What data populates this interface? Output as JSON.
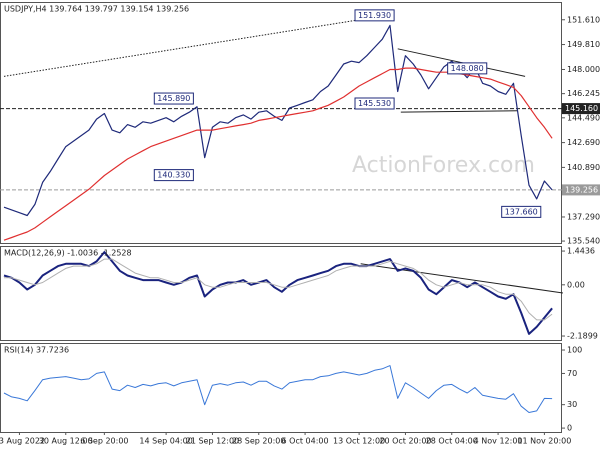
{
  "chart_data": [
    {
      "type": "line",
      "title": "USDJPY,H4 139.764 139.797 139.154 139.256",
      "watermark": "ActionForex.com",
      "ylim": [
        135.4,
        152.9
      ],
      "yticks": [
        {
          "value": 135.54,
          "label": "135.540"
        },
        {
          "value": 137.29,
          "label": "137.290"
        },
        {
          "value": 140.89,
          "label": "140.890"
        },
        {
          "value": 142.69,
          "label": "142.690"
        },
        {
          "value": 144.49,
          "label": "144.490"
        },
        {
          "value": 146.245,
          "label": "146.245"
        },
        {
          "value": 148.0,
          "label": "148.000"
        },
        {
          "value": 149.81,
          "label": "149.810"
        },
        {
          "value": 151.61,
          "label": "151.610"
        }
      ],
      "series": [
        {
          "color": "#1f2a7a",
          "width": 1.2,
          "values": [
            138.0,
            137.8,
            137.6,
            137.4,
            138.2,
            139.8,
            140.6,
            141.5,
            142.4,
            142.8,
            143.2,
            143.6,
            144.4,
            144.8,
            143.6,
            143.4,
            144.0,
            143.8,
            144.2,
            144.1,
            144.3,
            144.5,
            144.2,
            144.6,
            144.9,
            145.3,
            141.6,
            143.8,
            144.2,
            144.1,
            144.5,
            144.7,
            144.4,
            144.9,
            145.0,
            144.6,
            144.3,
            145.2,
            145.4,
            145.6,
            145.8,
            146.4,
            146.8,
            147.6,
            148.4,
            148.6,
            148.5,
            149.0,
            149.6,
            150.2,
            151.2,
            146.4,
            149.0,
            148.4,
            147.6,
            146.6,
            147.4,
            148.2,
            148.6,
            148.0,
            147.4,
            148.2,
            147.0,
            146.8,
            146.4,
            146.2,
            147.0,
            143.2,
            139.6,
            138.6,
            139.9,
            139.256
          ]
        },
        {
          "color": "#e03030",
          "width": 1.2,
          "values": [
            135.6,
            135.8,
            136.0,
            136.2,
            136.5,
            136.9,
            137.3,
            137.7,
            138.1,
            138.5,
            138.9,
            139.3,
            139.8,
            140.3,
            140.7,
            141.1,
            141.5,
            141.8,
            142.1,
            142.4,
            142.6,
            142.8,
            143.0,
            143.2,
            143.4,
            143.6,
            143.6,
            143.6,
            143.7,
            143.8,
            143.9,
            144.0,
            144.1,
            144.3,
            144.4,
            144.5,
            144.6,
            144.7,
            144.8,
            144.9,
            145.0,
            145.2,
            145.4,
            145.7,
            146.0,
            146.4,
            146.8,
            147.1,
            147.4,
            147.7,
            148.0,
            148.0,
            148.1,
            148.1,
            148.0,
            147.9,
            147.8,
            147.8,
            147.8,
            147.7,
            147.6,
            147.5,
            147.4,
            147.3,
            147.1,
            146.9,
            146.7,
            146.1,
            145.3,
            144.5,
            143.8,
            143.0
          ]
        }
      ],
      "levels": [
        {
          "value": 145.16,
          "label": "145.160",
          "color": "#222222"
        },
        {
          "value": 139.256,
          "label": "139.256",
          "color": "#9a9a9a"
        }
      ],
      "annotations": [
        {
          "value": 151.93,
          "label": "151.930",
          "index": 48
        },
        {
          "value": 145.89,
          "label": "145.890",
          "index": 22
        },
        {
          "value": 140.33,
          "label": "140.330",
          "index": 22
        },
        {
          "value": 145.53,
          "label": "145.530",
          "index": 48
        },
        {
          "value": 148.08,
          "label": "148.080",
          "index": 60
        },
        {
          "value": 137.66,
          "label": "137.660",
          "index": 67
        }
      ],
      "trendlines": [
        {
          "x": [
            0,
            50.4
          ],
          "y": [
            147.5,
            152.0
          ],
          "style": "dotted"
        },
        {
          "x": [
            51,
            67.5
          ],
          "y": [
            149.5,
            147.5
          ],
          "style": "solid"
        },
        {
          "x": [
            51.4,
            66.5
          ],
          "y": [
            144.9,
            145.0
          ],
          "style": "solid"
        }
      ]
    },
    {
      "type": "line",
      "title": "MACD(12,26,9) -1.0036 -1.2528",
      "ylim": [
        -2.36,
        1.66
      ],
      "yticks": [
        -2.1899,
        {
          "value": 0,
          "label": "0.00"
        },
        1.4436
      ],
      "series": [
        {
          "color": "#1a237e",
          "width": 2,
          "values": [
            0.4,
            0.3,
            0.1,
            -0.2,
            0.0,
            0.4,
            0.6,
            0.8,
            0.9,
            0.9,
            0.9,
            0.8,
            1.0,
            1.4,
            1.0,
            0.6,
            0.4,
            0.3,
            0.2,
            0.2,
            0.2,
            0.1,
            0.0,
            0.1,
            0.3,
            0.4,
            -0.5,
            -0.2,
            0.0,
            0.1,
            0.1,
            0.2,
            0.0,
            0.1,
            0.2,
            -0.1,
            -0.3,
            0.0,
            0.2,
            0.3,
            0.4,
            0.5,
            0.6,
            0.8,
            0.9,
            0.9,
            0.8,
            0.8,
            0.9,
            1.0,
            1.1,
            0.6,
            0.7,
            0.6,
            0.3,
            -0.2,
            -0.4,
            -0.1,
            0.2,
            0.1,
            -0.1,
            0.1,
            -0.1,
            -0.3,
            -0.5,
            -0.6,
            -0.4,
            -1.2,
            -2.1,
            -1.8,
            -1.4,
            -1.0036
          ]
        },
        {
          "color": "#b0b0b0",
          "width": 1,
          "values": [
            0.3,
            0.3,
            0.2,
            0.1,
            0.0,
            0.1,
            0.3,
            0.5,
            0.7,
            0.8,
            0.8,
            0.8,
            0.9,
            1.1,
            1.1,
            0.9,
            0.7,
            0.5,
            0.4,
            0.3,
            0.3,
            0.2,
            0.1,
            0.1,
            0.2,
            0.3,
            0.0,
            -0.1,
            -0.1,
            0.0,
            0.1,
            0.1,
            0.1,
            0.1,
            0.1,
            0.0,
            -0.1,
            -0.1,
            0.0,
            0.1,
            0.2,
            0.3,
            0.4,
            0.6,
            0.7,
            0.8,
            0.8,
            0.8,
            0.8,
            0.9,
            1.0,
            0.9,
            0.8,
            0.7,
            0.5,
            0.2,
            0.0,
            -0.1,
            0.0,
            0.1,
            0.0,
            0.0,
            0.0,
            -0.1,
            -0.3,
            -0.4,
            -0.4,
            -0.7,
            -1.2,
            -1.5,
            -1.5,
            -1.2528
          ]
        }
      ],
      "trendlines": [
        {
          "x": [
            46.2,
            72.4
          ],
          "y": [
            0.9,
            -0.35
          ],
          "style": "solid"
        }
      ]
    },
    {
      "type": "line",
      "title": "RSI(14) 37.7236",
      "ylim": [
        -5,
        109
      ],
      "yticks": [
        0,
        30,
        70,
        100
      ],
      "series": [
        {
          "color": "#3a78d8",
          "width": 1,
          "values": [
            45,
            40,
            38,
            35,
            48,
            62,
            64,
            65,
            66,
            64,
            62,
            63,
            70,
            72,
            50,
            48,
            55,
            52,
            56,
            54,
            57,
            58,
            54,
            58,
            60,
            62,
            30,
            55,
            57,
            55,
            58,
            59,
            55,
            60,
            60,
            54,
            50,
            58,
            60,
            62,
            62,
            66,
            67,
            70,
            72,
            70,
            68,
            70,
            74,
            76,
            80,
            38,
            58,
            52,
            45,
            38,
            48,
            55,
            56,
            50,
            45,
            52,
            42,
            40,
            38,
            37,
            44,
            28,
            20,
            22,
            38,
            37.7236
          ]
        }
      ],
      "categories": [
        null,
        null,
        "23 Aug 2022",
        null,
        null,
        null,
        null,
        null,
        "30 Aug 12:00",
        null,
        null,
        null,
        null,
        "6 Sep 20:00",
        null,
        null,
        null,
        null,
        null,
        null,
        null,
        "14 Sep 04:00",
        null,
        null,
        null,
        null,
        null,
        "21 Sep 12:00",
        null,
        null,
        null,
        null,
        null,
        "28 Sep 20:00",
        null,
        null,
        null,
        null,
        null,
        "6 Oct 04:00",
        null,
        null,
        null,
        null,
        null,
        null,
        "13 Oct 12:00",
        null,
        null,
        null,
        null,
        null,
        "20 Oct 20:00",
        null,
        null,
        null,
        null,
        null,
        "28 Oct 04:00",
        null,
        null,
        null,
        null,
        null,
        "4 Nov 12:00",
        null,
        null,
        null,
        null,
        null,
        "11 Nov 20:00",
        null
      ]
    }
  ]
}
